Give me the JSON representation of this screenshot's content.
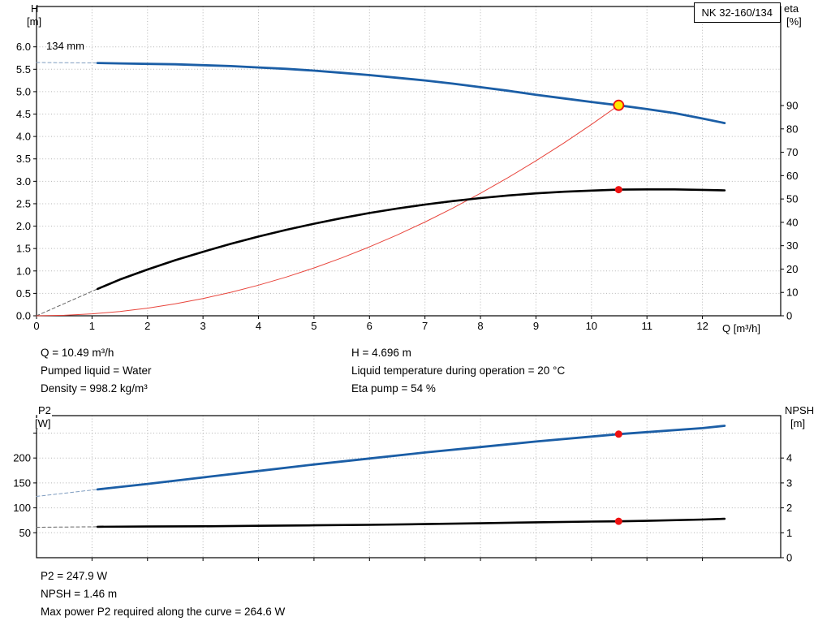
{
  "title_box": "NK 32-160/134",
  "info_top": {
    "left": [
      "Q = 10.49 m³/h",
      "Pumped liquid = Water",
      "Density = 998.2 kg/m³"
    ],
    "right": [
      "H = 4.696 m",
      "Liquid temperature during operation = 20 °C",
      "Eta pump = 54 %"
    ]
  },
  "info_bottom": [
    "P2 = 247.9 W",
    "NPSH = 1.46 m",
    "Max power P2 required along the curve = 264.6 W"
  ],
  "colors": {
    "curve_blue": "#1b5ea6",
    "curve_black": "#000000",
    "system_red": "#e8453c",
    "marker_red": "#ee1111",
    "duty_yellow": "#ffe800",
    "grid": "#b4b4b4"
  },
  "operating_point": {
    "q_m3h": 10.49,
    "h_m": 4.696,
    "eta_pct": 54,
    "p2_w": 247.9,
    "npsh_m": 1.46
  },
  "chart_data": [
    {
      "id": "top",
      "type": "line",
      "title": "NK 32-160/134",
      "impeller_label": "134 mm",
      "axis_titles": {
        "left1": "H",
        "left2": "[m]",
        "right1": "eta",
        "right2": "[%]",
        "x": "Q [m³/h]"
      },
      "x": {
        "min": 0,
        "max": 13.41,
        "ticks": [
          [
            0,
            "0"
          ],
          [
            1,
            "1"
          ],
          [
            2,
            "2"
          ],
          [
            3,
            "3"
          ],
          [
            4,
            "4"
          ],
          [
            5,
            "5"
          ],
          [
            6,
            "6"
          ],
          [
            7,
            "7"
          ],
          [
            8,
            "8"
          ],
          [
            9,
            "9"
          ],
          [
            10,
            "10"
          ],
          [
            11,
            "11"
          ],
          [
            12,
            "12"
          ]
        ]
      },
      "left": {
        "min": 0,
        "max": 6.9,
        "ticks": [
          [
            0,
            "0.0"
          ],
          [
            0.5,
            "0.5"
          ],
          [
            1,
            "1.0"
          ],
          [
            1.5,
            "1.5"
          ],
          [
            2,
            "2.0"
          ],
          [
            2.5,
            "2.5"
          ],
          [
            3,
            "3.0"
          ],
          [
            3.5,
            "3.5"
          ],
          [
            4,
            "4.0"
          ],
          [
            4.5,
            "4.5"
          ],
          [
            5,
            "5.0"
          ],
          [
            5.5,
            "5.5"
          ],
          [
            6,
            "6.0"
          ]
        ]
      },
      "right": {
        "min": 0,
        "max": 132.4,
        "ticks": [
          [
            0,
            "0"
          ],
          [
            10,
            "10"
          ],
          [
            20,
            "20"
          ],
          [
            30,
            "30"
          ],
          [
            40,
            "40"
          ],
          [
            50,
            "50"
          ],
          [
            60,
            "60"
          ],
          [
            70,
            "70"
          ],
          [
            80,
            "80"
          ],
          [
            90,
            "90"
          ]
        ]
      },
      "plot": {
        "l": 45,
        "t": 8,
        "r": 962,
        "b": 389
      },
      "series": [
        {
          "name": "head-curve-extension",
          "axis": "left",
          "color": "#7f9dc0",
          "width": 1,
          "dash": "4 3",
          "points": [
            [
              0,
              5.65
            ],
            [
              1.1,
              5.64
            ]
          ]
        },
        {
          "name": "efficiency-curve-extension",
          "axis": "right",
          "color": "#666666",
          "width": 1,
          "dash": "4 3",
          "points": [
            [
              0,
              0
            ],
            [
              1.1,
              11.5
            ]
          ]
        },
        {
          "name": "system-curve",
          "axis": "left",
          "color": "#e8453c",
          "width": 1,
          "points": [
            [
              0,
              0
            ],
            [
              0.5,
              0.011
            ],
            [
              1,
              0.043
            ],
            [
              1.5,
              0.096
            ],
            [
              2,
              0.171
            ],
            [
              2.5,
              0.267
            ],
            [
              3,
              0.384
            ],
            [
              3.5,
              0.523
            ],
            [
              4,
              0.683
            ],
            [
              4.5,
              0.864
            ],
            [
              5,
              1.067
            ],
            [
              5.5,
              1.291
            ],
            [
              6,
              1.537
            ],
            [
              6.5,
              1.804
            ],
            [
              7,
              2.092
            ],
            [
              7.5,
              2.401
            ],
            [
              8,
              2.732
            ],
            [
              8.5,
              3.084
            ],
            [
              9,
              3.457
            ],
            [
              9.5,
              3.852
            ],
            [
              10,
              4.268
            ],
            [
              10.49,
              4.696
            ]
          ]
        },
        {
          "name": "efficiency-curve",
          "axis": "right",
          "color": "#000000",
          "width": 2.6,
          "points": [
            [
              1.1,
              11.5
            ],
            [
              1.5,
              15.5
            ],
            [
              2,
              19.8
            ],
            [
              2.5,
              23.8
            ],
            [
              3,
              27.4
            ],
            [
              3.5,
              30.8
            ],
            [
              4,
              33.9
            ],
            [
              4.5,
              36.8
            ],
            [
              5,
              39.4
            ],
            [
              5.5,
              41.8
            ],
            [
              6,
              44.0
            ],
            [
              6.5,
              45.9
            ],
            [
              7,
              47.6
            ],
            [
              7.5,
              49.1
            ],
            [
              8,
              50.4
            ],
            [
              8.5,
              51.5
            ],
            [
              9,
              52.4
            ],
            [
              9.5,
              53.1
            ],
            [
              10,
              53.6
            ],
            [
              10.49,
              54.0
            ],
            [
              11,
              54.1
            ],
            [
              11.5,
              54.1
            ],
            [
              12,
              53.9
            ],
            [
              12.4,
              53.7
            ]
          ]
        },
        {
          "name": "head-curve",
          "axis": "left",
          "color": "#1b5ea6",
          "width": 2.8,
          "points": [
            [
              1.1,
              5.64
            ],
            [
              1.5,
              5.63
            ],
            [
              2,
              5.62
            ],
            [
              2.5,
              5.61
            ],
            [
              3,
              5.59
            ],
            [
              3.5,
              5.57
            ],
            [
              4,
              5.54
            ],
            [
              4.5,
              5.51
            ],
            [
              5,
              5.47
            ],
            [
              5.5,
              5.42
            ],
            [
              6,
              5.37
            ],
            [
              6.5,
              5.31
            ],
            [
              7,
              5.25
            ],
            [
              7.5,
              5.18
            ],
            [
              8,
              5.1
            ],
            [
              8.5,
              5.02
            ],
            [
              9,
              4.93
            ],
            [
              9.5,
              4.85
            ],
            [
              10,
              4.77
            ],
            [
              10.49,
              4.696
            ],
            [
              11,
              4.61
            ],
            [
              11.5,
              4.52
            ],
            [
              12,
              4.4
            ],
            [
              12.4,
              4.3
            ]
          ]
        }
      ],
      "markers": [
        {
          "name": "efficiency-point-marker",
          "x": 10.49,
          "y": 54,
          "axis": "right",
          "r": 4.5,
          "fill": "#ee1111"
        },
        {
          "name": "duty-point-marker",
          "x": 10.49,
          "y": 4.696,
          "axis": "left",
          "r": 6,
          "fill": "#ffe800",
          "stroke": "#ee1111",
          "sw": 1.8
        }
      ]
    },
    {
      "id": "bottom",
      "type": "line",
      "title": "",
      "axis_titles": {
        "left1": "P2",
        "left2": "[W]",
        "right1": "NPSH",
        "right2": "[m]",
        "x": ""
      },
      "x": {
        "min": 0,
        "max": 13.41,
        "ticks": [
          [
            1,
            null
          ],
          [
            2,
            null
          ],
          [
            3,
            null
          ],
          [
            4,
            null
          ],
          [
            5,
            null
          ],
          [
            6,
            null
          ],
          [
            7,
            null
          ],
          [
            8,
            null
          ],
          [
            9,
            null
          ],
          [
            10,
            null
          ],
          [
            11,
            null
          ],
          [
            12,
            null
          ]
        ]
      },
      "left": {
        "min": 0,
        "max": 285,
        "ticks": [
          [
            50,
            "50"
          ],
          [
            100,
            "100"
          ],
          [
            150,
            "150"
          ],
          [
            200,
            "200"
          ],
          [
            250,
            null
          ]
        ]
      },
      "right": {
        "min": 0,
        "max": 5.7,
        "ticks": [
          [
            0,
            "0"
          ],
          [
            1,
            "1"
          ],
          [
            2,
            "2"
          ],
          [
            3,
            "3"
          ],
          [
            4,
            "4"
          ]
        ]
      },
      "plot": {
        "l": 45,
        "t": 15,
        "r": 962,
        "b": 190
      },
      "series": [
        {
          "name": "power-curve-extension",
          "axis": "left",
          "color": "#7f9dc0",
          "width": 1,
          "dash": "4 3",
          "points": [
            [
              0,
              123
            ],
            [
              1.1,
              137
            ]
          ]
        },
        {
          "name": "npsh-curve-extension",
          "axis": "right",
          "color": "#666666",
          "width": 1,
          "dash": "4 3",
          "points": [
            [
              0,
              1.22
            ],
            [
              1.1,
              1.24
            ]
          ]
        },
        {
          "name": "npsh-curve",
          "axis": "right",
          "color": "#000000",
          "width": 2.6,
          "points": [
            [
              1.1,
              1.24
            ],
            [
              2,
              1.25
            ],
            [
              3,
              1.26
            ],
            [
              4,
              1.28
            ],
            [
              5,
              1.3
            ],
            [
              6,
              1.32
            ],
            [
              7,
              1.35
            ],
            [
              8,
              1.38
            ],
            [
              9,
              1.42
            ],
            [
              10,
              1.45
            ],
            [
              10.49,
              1.46
            ],
            [
              11,
              1.48
            ],
            [
              12,
              1.53
            ],
            [
              12.4,
              1.56
            ]
          ]
        },
        {
          "name": "power-curve",
          "axis": "left",
          "color": "#1b5ea6",
          "width": 2.8,
          "points": [
            [
              1.1,
              137
            ],
            [
              2,
              148
            ],
            [
              3,
              161
            ],
            [
              4,
              174
            ],
            [
              5,
              187
            ],
            [
              6,
              199
            ],
            [
              7,
              211
            ],
            [
              8,
              222
            ],
            [
              9,
              233
            ],
            [
              10,
              243
            ],
            [
              10.49,
              247.9
            ],
            [
              11,
              252
            ],
            [
              12,
              260
            ],
            [
              12.4,
              264.6
            ]
          ]
        }
      ],
      "markers": [
        {
          "name": "power-point-marker",
          "x": 10.49,
          "y": 247.9,
          "axis": "left",
          "r": 4.5,
          "fill": "#ee1111"
        },
        {
          "name": "npsh-point-marker",
          "x": 10.49,
          "y": 1.46,
          "axis": "right",
          "r": 4.5,
          "fill": "#ee1111"
        }
      ]
    }
  ]
}
